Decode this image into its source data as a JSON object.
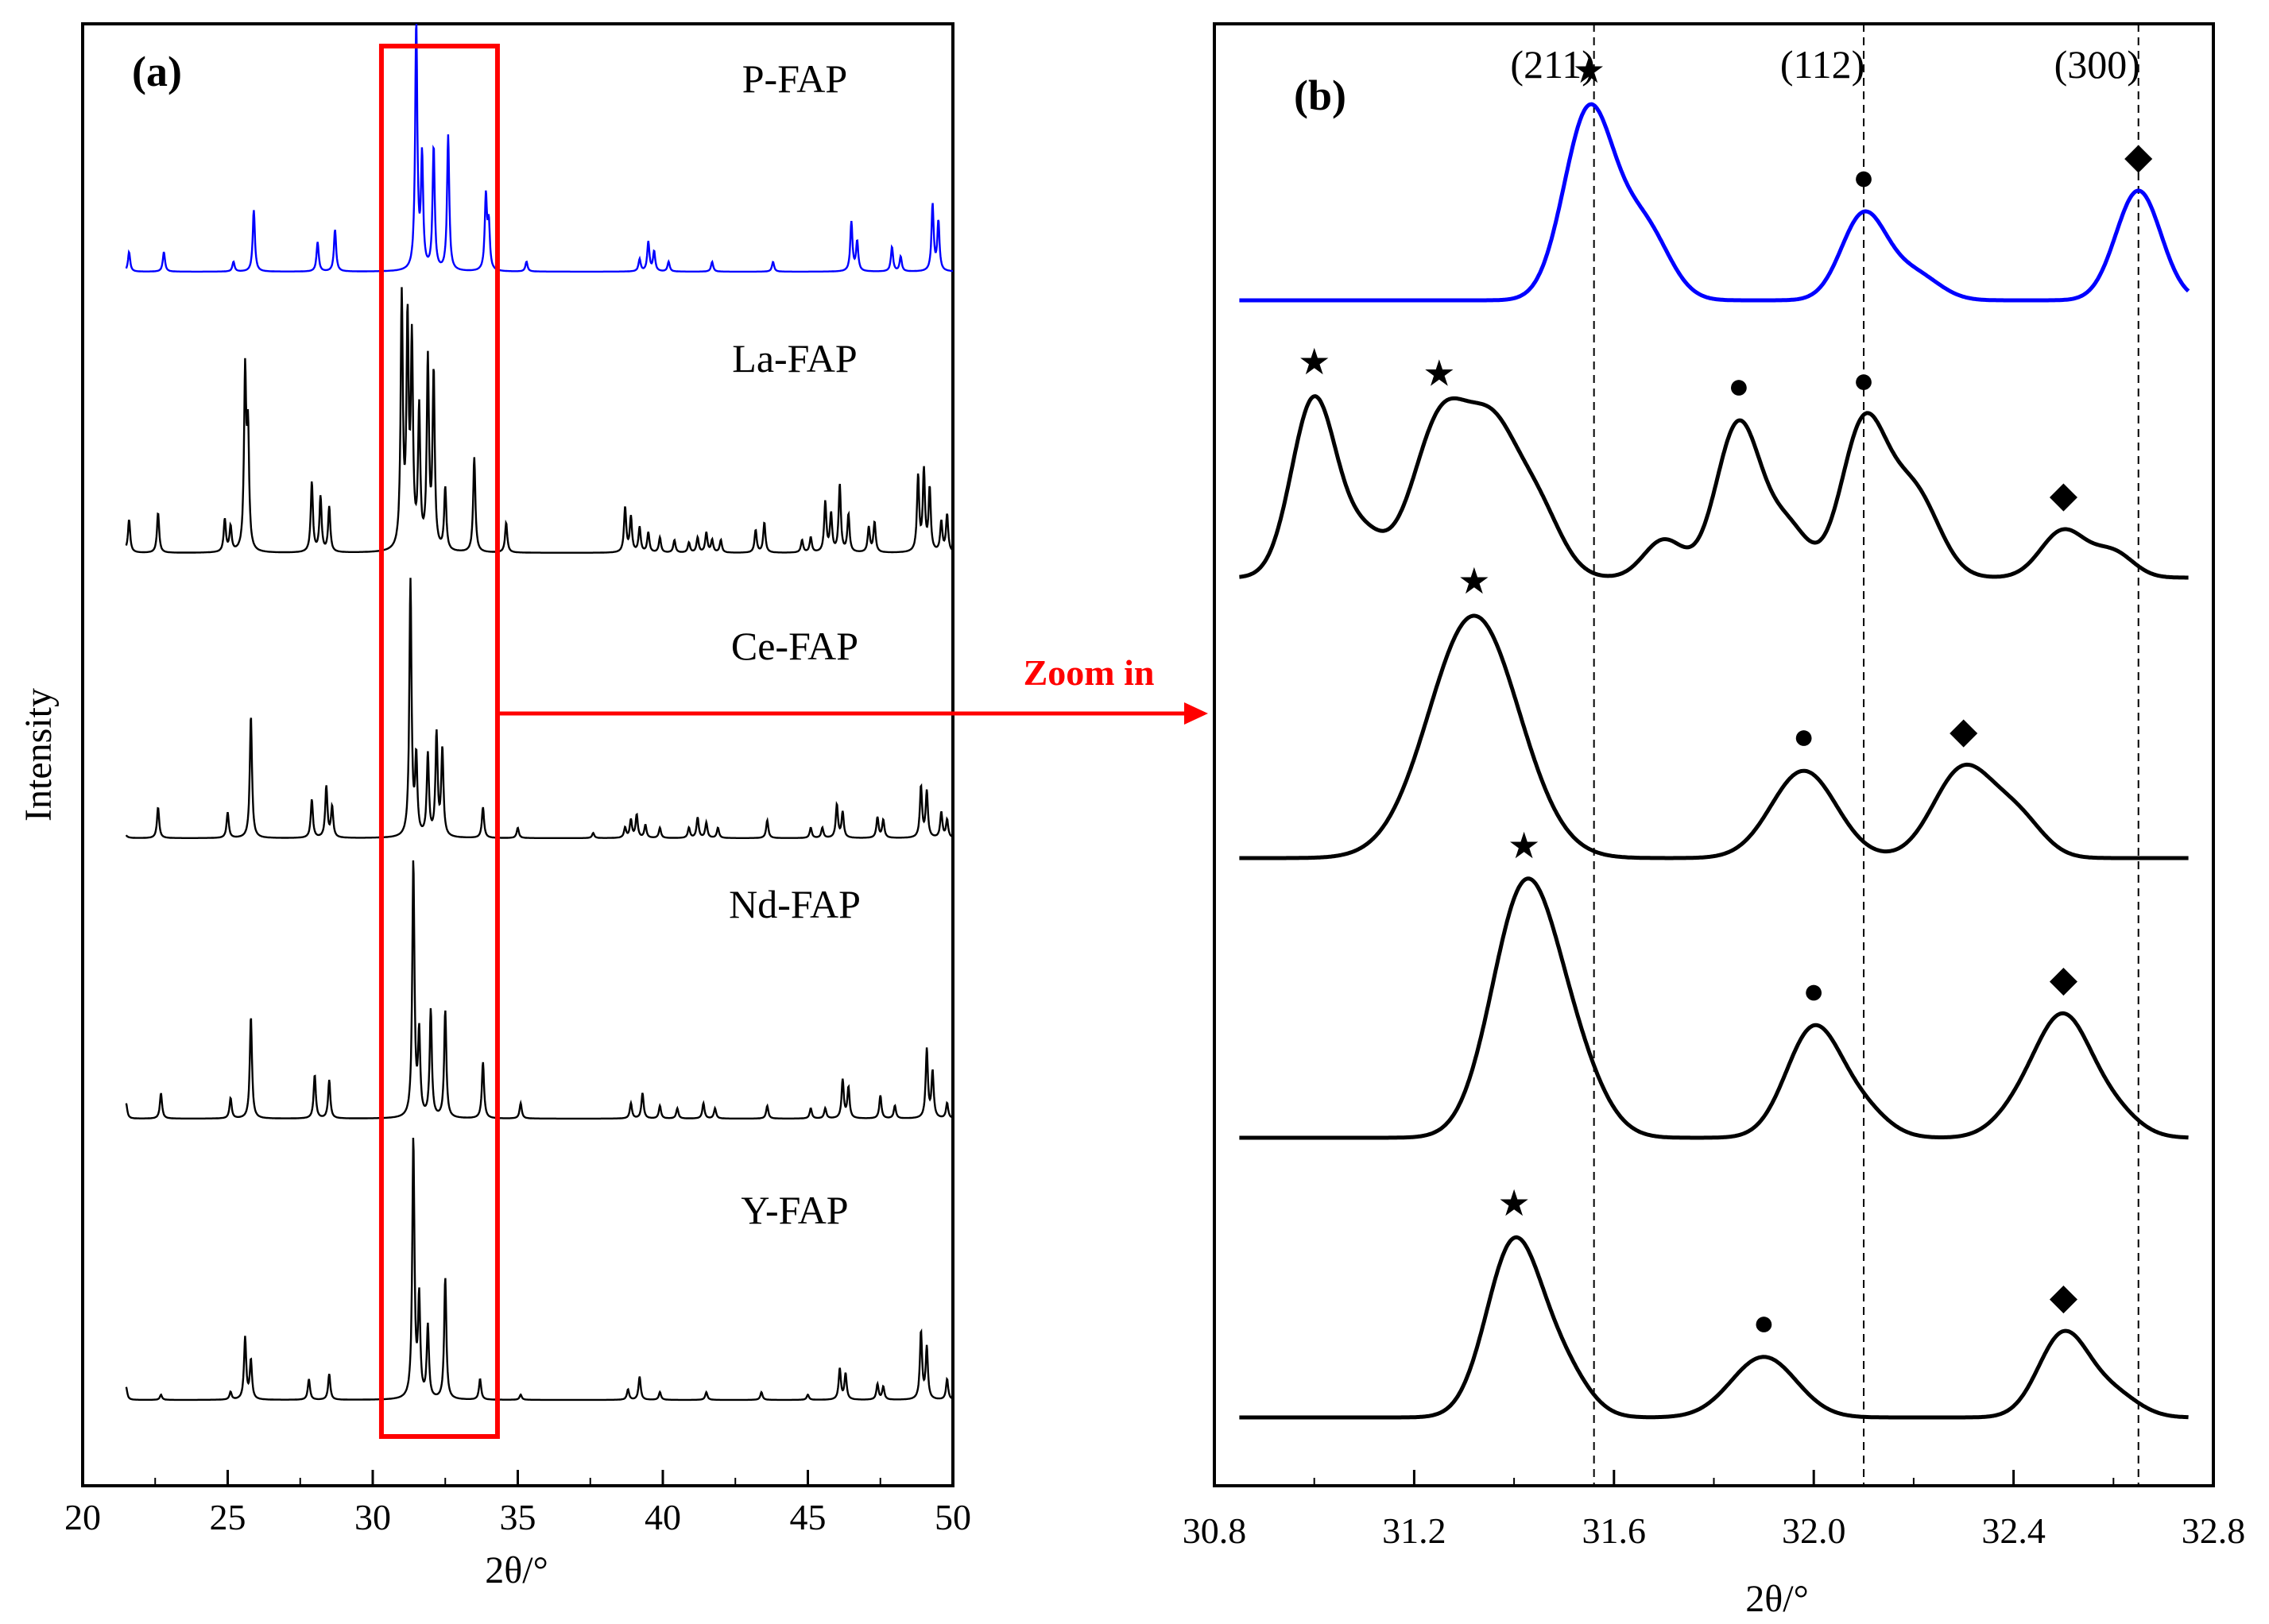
{
  "chart_data": [
    {
      "panel": "a",
      "panel_label": "(a)",
      "type": "line",
      "xlabel": "2θ/°",
      "ylabel": "Intensity",
      "xlim": [
        20,
        50
      ],
      "xticks": [
        20,
        25,
        30,
        35,
        40,
        45,
        50
      ],
      "grid": false,
      "highlight_box": {
        "x_range": [
          30.3,
          34.3
        ],
        "color": "#ff0000"
      },
      "annotation": {
        "text": "Zoom in",
        "color": "#ff0000"
      },
      "series": [
        {
          "name": "P-FAP",
          "color": "#0000ff",
          "peaks": [
            [
              21.6,
              0.08
            ],
            [
              22.8,
              0.08
            ],
            [
              25.2,
              0.04
            ],
            [
              25.9,
              0.25
            ],
            [
              28.1,
              0.12
            ],
            [
              28.7,
              0.17
            ],
            [
              31.5,
              1.0
            ],
            [
              31.7,
              0.45
            ],
            [
              32.1,
              0.5
            ],
            [
              32.6,
              0.55
            ],
            [
              33.9,
              0.3
            ],
            [
              34.0,
              0.18
            ],
            [
              35.3,
              0.04
            ],
            [
              39.2,
              0.05
            ],
            [
              39.5,
              0.12
            ],
            [
              39.7,
              0.08
            ],
            [
              40.2,
              0.04
            ],
            [
              41.7,
              0.04
            ],
            [
              43.8,
              0.04
            ],
            [
              46.5,
              0.2
            ],
            [
              46.7,
              0.12
            ],
            [
              47.9,
              0.1
            ],
            [
              48.2,
              0.06
            ],
            [
              49.3,
              0.27
            ],
            [
              49.5,
              0.2
            ]
          ]
        },
        {
          "name": "La-FAP",
          "color": "#000000",
          "peaks": [
            [
              21.3,
              0.15
            ],
            [
              21.6,
              0.13
            ],
            [
              22.6,
              0.16
            ],
            [
              24.9,
              0.13
            ],
            [
              25.1,
              0.1
            ],
            [
              25.6,
              0.7
            ],
            [
              25.7,
              0.45
            ],
            [
              27.9,
              0.28
            ],
            [
              28.2,
              0.22
            ],
            [
              28.5,
              0.18
            ],
            [
              31.0,
              1.0
            ],
            [
              31.2,
              0.88
            ],
            [
              31.35,
              0.8
            ],
            [
              31.6,
              0.55
            ],
            [
              31.9,
              0.75
            ],
            [
              32.1,
              0.7
            ],
            [
              32.5,
              0.25
            ],
            [
              33.5,
              0.38
            ],
            [
              34.6,
              0.12
            ],
            [
              38.7,
              0.18
            ],
            [
              38.9,
              0.14
            ],
            [
              39.2,
              0.1
            ],
            [
              39.5,
              0.08
            ],
            [
              39.9,
              0.06
            ],
            [
              40.4,
              0.05
            ],
            [
              40.9,
              0.04
            ],
            [
              41.2,
              0.06
            ],
            [
              41.5,
              0.08
            ],
            [
              41.7,
              0.05
            ],
            [
              42.0,
              0.05
            ],
            [
              43.2,
              0.09
            ],
            [
              43.5,
              0.12
            ],
            [
              44.8,
              0.05
            ],
            [
              45.1,
              0.06
            ],
            [
              45.6,
              0.2
            ],
            [
              45.8,
              0.15
            ],
            [
              46.1,
              0.27
            ],
            [
              46.4,
              0.15
            ],
            [
              47.1,
              0.1
            ],
            [
              47.3,
              0.12
            ],
            [
              48.8,
              0.3
            ],
            [
              49.0,
              0.32
            ],
            [
              49.2,
              0.25
            ],
            [
              49.6,
              0.12
            ],
            [
              49.8,
              0.15
            ]
          ]
        },
        {
          "name": "Ce-FAP",
          "color": "#000000",
          "peaks": [
            [
              21.4,
              0.07
            ],
            [
              22.6,
              0.12
            ],
            [
              25.0,
              0.1
            ],
            [
              25.8,
              0.48
            ],
            [
              27.9,
              0.15
            ],
            [
              28.4,
              0.2
            ],
            [
              28.6,
              0.12
            ],
            [
              31.3,
              1.0
            ],
            [
              31.5,
              0.3
            ],
            [
              31.9,
              0.32
            ],
            [
              32.2,
              0.4
            ],
            [
              32.4,
              0.34
            ],
            [
              33.8,
              0.12
            ],
            [
              35.0,
              0.04
            ],
            [
              37.6,
              0.02
            ],
            [
              38.7,
              0.04
            ],
            [
              38.9,
              0.07
            ],
            [
              39.1,
              0.09
            ],
            [
              39.4,
              0.05
            ],
            [
              39.9,
              0.04
            ],
            [
              40.9,
              0.04
            ],
            [
              41.2,
              0.08
            ],
            [
              41.5,
              0.06
            ],
            [
              41.9,
              0.04
            ],
            [
              43.6,
              0.07
            ],
            [
              45.1,
              0.04
            ],
            [
              45.5,
              0.04
            ],
            [
              46.0,
              0.13
            ],
            [
              46.2,
              0.1
            ],
            [
              47.4,
              0.08
            ],
            [
              47.6,
              0.07
            ],
            [
              48.9,
              0.2
            ],
            [
              49.1,
              0.18
            ],
            [
              49.6,
              0.1
            ],
            [
              49.8,
              0.07
            ]
          ]
        },
        {
          "name": "Nd-FAP",
          "color": "#000000",
          "peaks": [
            [
              21.5,
              0.06
            ],
            [
              22.7,
              0.1
            ],
            [
              25.1,
              0.08
            ],
            [
              25.8,
              0.4
            ],
            [
              28.0,
              0.17
            ],
            [
              28.5,
              0.15
            ],
            [
              31.4,
              1.0
            ],
            [
              31.6,
              0.32
            ],
            [
              32.0,
              0.42
            ],
            [
              32.5,
              0.42
            ],
            [
              33.8,
              0.22
            ],
            [
              35.1,
              0.06
            ],
            [
              38.9,
              0.06
            ],
            [
              39.3,
              0.1
            ],
            [
              39.9,
              0.05
            ],
            [
              40.5,
              0.04
            ],
            [
              41.4,
              0.06
            ],
            [
              41.8,
              0.04
            ],
            [
              43.6,
              0.05
            ],
            [
              45.1,
              0.04
            ],
            [
              45.6,
              0.04
            ],
            [
              46.2,
              0.15
            ],
            [
              46.4,
              0.12
            ],
            [
              47.5,
              0.09
            ],
            [
              48.0,
              0.05
            ],
            [
              49.1,
              0.27
            ],
            [
              49.3,
              0.18
            ],
            [
              49.8,
              0.06
            ]
          ]
        },
        {
          "name": "Y-FAP",
          "color": "#000000",
          "peaks": [
            [
              21.5,
              0.05
            ],
            [
              22.7,
              0.02
            ],
            [
              25.1,
              0.03
            ],
            [
              25.6,
              0.24
            ],
            [
              25.8,
              0.15
            ],
            [
              27.8,
              0.08
            ],
            [
              28.5,
              0.1
            ],
            [
              31.4,
              1.0
            ],
            [
              31.6,
              0.38
            ],
            [
              31.9,
              0.28
            ],
            [
              32.5,
              0.47
            ],
            [
              33.7,
              0.08
            ],
            [
              35.1,
              0.02
            ],
            [
              38.8,
              0.04
            ],
            [
              39.2,
              0.09
            ],
            [
              39.9,
              0.03
            ],
            [
              41.5,
              0.03
            ],
            [
              43.4,
              0.03
            ],
            [
              45.0,
              0.02
            ],
            [
              46.1,
              0.12
            ],
            [
              46.3,
              0.1
            ],
            [
              47.4,
              0.06
            ],
            [
              47.6,
              0.05
            ],
            [
              48.9,
              0.26
            ],
            [
              49.1,
              0.2
            ],
            [
              49.8,
              0.08
            ]
          ]
        }
      ]
    },
    {
      "panel": "b",
      "panel_label": "(b)",
      "type": "line",
      "xlabel": "2θ/°",
      "xlim": [
        30.8,
        32.8
      ],
      "xticks": [
        "30.8",
        "31.2",
        "31.6",
        "32.0",
        "32.4",
        "32.8"
      ],
      "grid": false,
      "reference_lines": [
        {
          "x": 31.56,
          "label": "(211)",
          "style": "dashed"
        },
        {
          "x": 32.1,
          "label": "(112)",
          "style": "dashed"
        },
        {
          "x": 32.65,
          "label": "(300)",
          "style": "dashed"
        }
      ],
      "marker_legend": {
        "star": "(211)",
        "circle": "(112)",
        "diamond": "(300)"
      },
      "series": [
        {
          "name": "P-FAP",
          "color": "#0000ff",
          "peaks": [
            [
              31.55,
              1.0,
              0.05
            ],
            [
              31.66,
              0.38,
              0.05
            ],
            [
              32.1,
              0.45,
              0.045
            ],
            [
              32.2,
              0.14,
              0.05
            ],
            [
              32.65,
              0.58,
              0.045
            ]
          ],
          "markers": [
            {
              "shape": "star",
              "x": 31.55
            },
            {
              "shape": "circle",
              "x": 32.1
            },
            {
              "shape": "diamond",
              "x": 32.65
            }
          ]
        },
        {
          "name": "La-FAP",
          "color": "#000000",
          "peaks": [
            [
              31.0,
              0.95,
              0.045
            ],
            [
              31.1,
              0.2,
              0.04
            ],
            [
              31.26,
              0.88,
              0.06
            ],
            [
              31.36,
              0.55,
              0.045
            ],
            [
              31.44,
              0.4,
              0.05
            ],
            [
              31.7,
              0.2,
              0.04
            ],
            [
              31.85,
              0.82,
              0.045
            ],
            [
              31.95,
              0.25,
              0.04
            ],
            [
              32.1,
              0.8,
              0.045
            ],
            [
              32.2,
              0.45,
              0.05
            ],
            [
              32.5,
              0.25,
              0.045
            ],
            [
              32.6,
              0.13,
              0.04
            ]
          ],
          "markers": [
            {
              "shape": "star",
              "x": 31.0
            },
            {
              "shape": "star",
              "x": 31.25
            },
            {
              "shape": "circle",
              "x": 31.85
            },
            {
              "shape": "circle",
              "x": 32.1
            },
            {
              "shape": "diamond",
              "x": 32.5
            }
          ]
        },
        {
          "name": "Ce-FAP",
          "color": "#000000",
          "peaks": [
            [
              31.32,
              1.0,
              0.09
            ],
            [
              31.98,
              0.36,
              0.065
            ],
            [
              32.3,
              0.37,
              0.06
            ],
            [
              32.41,
              0.15,
              0.05
            ]
          ],
          "markers": [
            {
              "shape": "star",
              "x": 31.32
            },
            {
              "shape": "circle",
              "x": 31.98
            },
            {
              "shape": "diamond",
              "x": 32.3
            }
          ]
        },
        {
          "name": "Nd-FAP",
          "color": "#000000",
          "peaks": [
            [
              31.42,
              1.0,
              0.065
            ],
            [
              31.52,
              0.25,
              0.06
            ],
            [
              32.0,
              0.45,
              0.055
            ],
            [
              32.1,
              0.1,
              0.05
            ],
            [
              32.5,
              0.48,
              0.055
            ],
            [
              32.41,
              0.1,
              0.05
            ],
            [
              32.6,
              0.1,
              0.05
            ]
          ],
          "markers": [
            {
              "shape": "star",
              "x": 31.42
            },
            {
              "shape": "circle",
              "x": 32.0
            },
            {
              "shape": "diamond",
              "x": 32.5
            }
          ]
        },
        {
          "name": "Y-FAP",
          "color": "#000000",
          "peaks": [
            [
              31.4,
              0.92,
              0.055
            ],
            [
              31.5,
              0.22,
              0.05
            ],
            [
              31.9,
              0.32,
              0.065
            ],
            [
              32.5,
              0.44,
              0.05
            ],
            [
              32.6,
              0.12,
              0.05
            ]
          ],
          "markers": [
            {
              "shape": "star",
              "x": 31.4
            },
            {
              "shape": "circle",
              "x": 31.9
            },
            {
              "shape": "diamond",
              "x": 32.5
            }
          ]
        }
      ]
    }
  ]
}
